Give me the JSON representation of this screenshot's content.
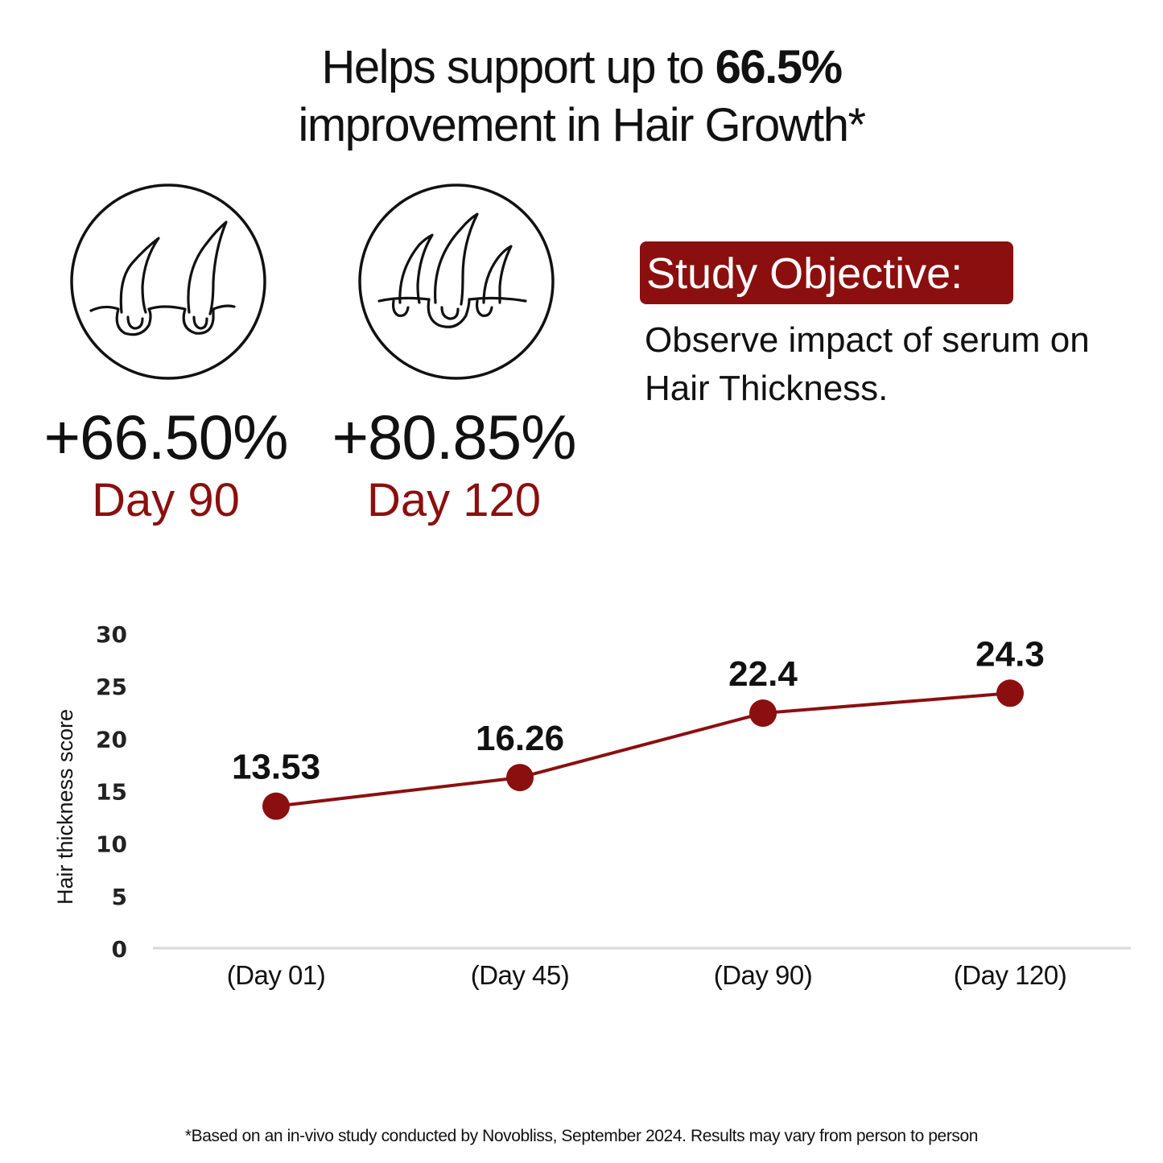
{
  "headline": {
    "line1_prefix": "Helps support up to ",
    "line1_bold": "66.5%",
    "line2": "improvement in Hair Growth*"
  },
  "stats": [
    {
      "percent": "+66.50%",
      "day": "Day 90",
      "icon": "hair-follicles-two-icon"
    },
    {
      "percent": "+80.85%",
      "day": "Day 120",
      "icon": "hair-follicles-three-icon"
    }
  ],
  "objective": {
    "badge": "Study Objective:",
    "text": "Observe impact of serum on Hair Thickness."
  },
  "colors": {
    "accent": "#8b0f0f",
    "text": "#111111",
    "axis": "#d9d9d9"
  },
  "chart_data": {
    "type": "line",
    "title": "",
    "xlabel": "",
    "ylabel": "Hair thickness score",
    "categories": [
      "(Day 01)",
      "(Day 45)",
      "(Day 90)",
      "(Day 120)"
    ],
    "series": [
      {
        "values": [
          13.53,
          16.26,
          22.4,
          24.3
        ],
        "labels": [
          "13.53",
          "16.26",
          "22.4",
          "24.3"
        ]
      }
    ],
    "ylim": [
      0,
      30
    ],
    "yticks": [
      "0",
      "5",
      "10",
      "15",
      "20",
      "25",
      "30"
    ],
    "grid": false,
    "legend": "none"
  },
  "footnote": "*Based on an in-vivo study conducted by Novobliss, September 2024. Results may vary from person to person"
}
